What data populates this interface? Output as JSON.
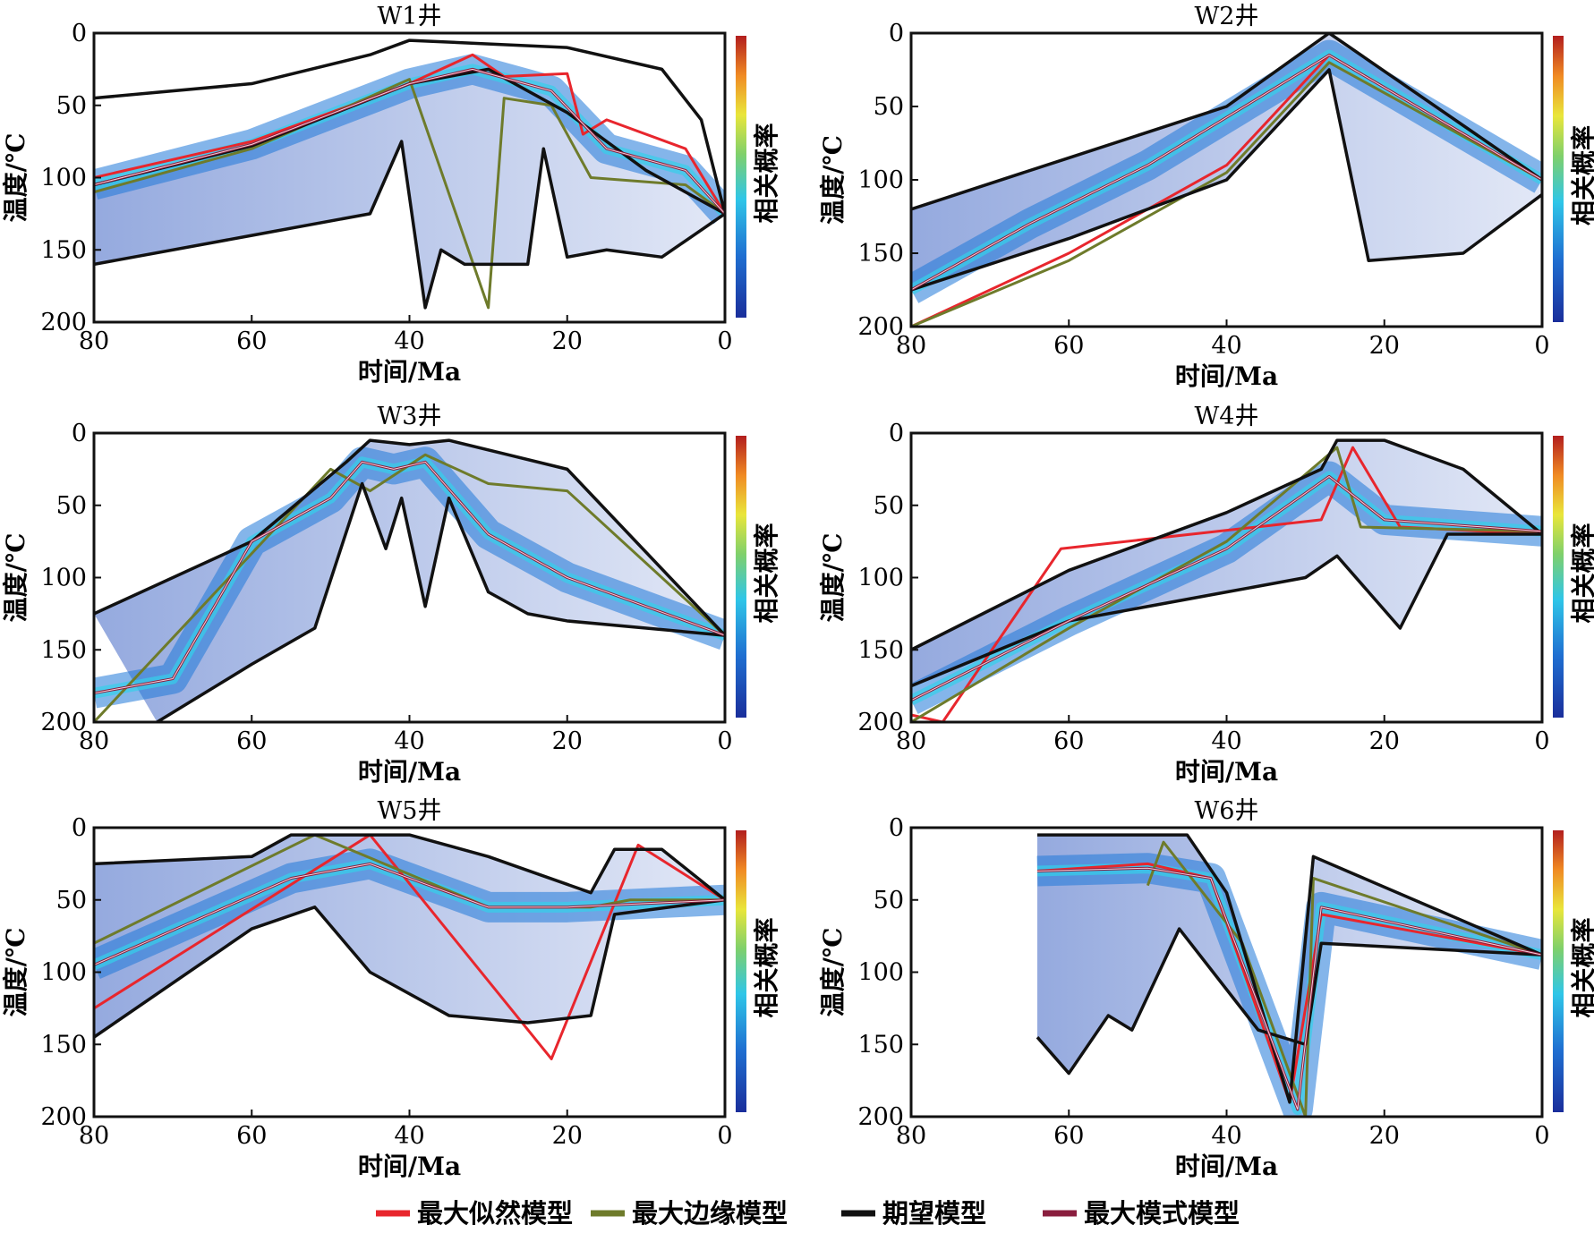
{
  "legend": [
    {
      "label": "最大似然模型",
      "color": "#e8262d"
    },
    {
      "label": "最大边缘模型",
      "color": "#6e7b2b"
    },
    {
      "label": "期望模型",
      "color": "#111111"
    },
    {
      "label": "最大模式模型",
      "color": "#8a1e3e"
    }
  ],
  "colorbar_label": "相关概率",
  "chart_data": [
    {
      "type": "line",
      "title": "W1井",
      "xlabel": "时间/Ma",
      "ylabel": "温度/℃",
      "xlim": [
        80,
        0
      ],
      "ylim": [
        200,
        0
      ],
      "xticks": [
        "80",
        "60",
        "40",
        "20",
        "0"
      ],
      "yticks": [
        "0",
        "50",
        "100",
        "150",
        "200"
      ],
      "series": [
        {
          "name": "最大似然模型",
          "points": [
            [
              80,
              100
            ],
            [
              60,
              75
            ],
            [
              40,
              35
            ],
            [
              32,
              15
            ],
            [
              28,
              30
            ],
            [
              20,
              28
            ],
            [
              18,
              70
            ],
            [
              15,
              60
            ],
            [
              5,
              80
            ],
            [
              0,
              125
            ]
          ]
        },
        {
          "name": "最大边缘模型",
          "points": [
            [
              80,
              110
            ],
            [
              60,
              80
            ],
            [
              40,
              32
            ],
            [
              30,
              190
            ],
            [
              28,
              45
            ],
            [
              22,
              50
            ],
            [
              17,
              100
            ],
            [
              5,
              105
            ],
            [
              0,
              125
            ]
          ]
        },
        {
          "name": "期望模型",
          "points": [
            [
              80,
              105
            ],
            [
              60,
              78
            ],
            [
              40,
              35
            ],
            [
              30,
              25
            ],
            [
              20,
              55
            ],
            [
              10,
              95
            ],
            [
              0,
              125
            ]
          ]
        },
        {
          "name": "期望模型",
          "points": [
            [
              80,
              45
            ],
            [
              60,
              35
            ],
            [
              45,
              15
            ],
            [
              40,
              5
            ],
            [
              20,
              10
            ],
            [
              8,
              25
            ],
            [
              3,
              60
            ],
            [
              0,
              125
            ]
          ]
        },
        {
          "name": "期望模型",
          "points": [
            [
              80,
              160
            ],
            [
              60,
              140
            ],
            [
              45,
              125
            ],
            [
              41,
              75
            ],
            [
              38,
              190
            ],
            [
              36,
              150
            ],
            [
              33,
              160
            ],
            [
              25,
              160
            ],
            [
              23,
              80
            ],
            [
              20,
              155
            ],
            [
              15,
              150
            ],
            [
              8,
              155
            ],
            [
              0,
              125
            ]
          ]
        },
        {
          "name": "最大模式模型",
          "points": [
            [
              80,
              105
            ],
            [
              60,
              77
            ],
            [
              40,
              35
            ],
            [
              32,
              25
            ],
            [
              22,
              40
            ],
            [
              15,
              80
            ],
            [
              5,
              95
            ],
            [
              0,
              125
            ]
          ]
        }
      ]
    },
    {
      "type": "line",
      "title": "W2井",
      "xlabel": "时间/Ma",
      "ylabel": "温度/℃",
      "xlim": [
        80,
        0
      ],
      "ylim": [
        200,
        0
      ],
      "xticks": [
        "80",
        "60",
        "40",
        "20",
        "0"
      ],
      "yticks": [
        "0",
        "50",
        "100",
        "150",
        "200"
      ],
      "series": [
        {
          "name": "最大似然模型",
          "points": [
            [
              80,
              200
            ],
            [
              60,
              150
            ],
            [
              40,
              90
            ],
            [
              27,
              15
            ],
            [
              0,
              100
            ]
          ]
        },
        {
          "name": "最大边缘模型",
          "points": [
            [
              80,
              200
            ],
            [
              60,
              155
            ],
            [
              40,
              95
            ],
            [
              27,
              20
            ],
            [
              0,
              100
            ]
          ]
        },
        {
          "name": "期望模型",
          "points": [
            [
              80,
              120
            ],
            [
              60,
              85
            ],
            [
              40,
              50
            ],
            [
              27,
              0
            ],
            [
              0,
              100
            ]
          ]
        },
        {
          "name": "期望模型",
          "points": [
            [
              80,
              175
            ],
            [
              60,
              140
            ],
            [
              40,
              100
            ],
            [
              27,
              25
            ],
            [
              22,
              155
            ],
            [
              10,
              150
            ],
            [
              0,
              110
            ]
          ]
        },
        {
          "name": "最大模式模型",
          "points": [
            [
              80,
              175
            ],
            [
              65,
              130
            ],
            [
              50,
              90
            ],
            [
              27,
              15
            ],
            [
              0,
              100
            ]
          ]
        }
      ]
    },
    {
      "type": "line",
      "title": "W3井",
      "xlabel": "时间/Ma",
      "ylabel": "温度/℃",
      "xlim": [
        80,
        0
      ],
      "ylim": [
        200,
        0
      ],
      "xticks": [
        "80",
        "60",
        "40",
        "20",
        "0"
      ],
      "yticks": [
        "0",
        "50",
        "100",
        "150",
        "200"
      ],
      "series": [
        {
          "name": "最大边缘模型",
          "points": [
            [
              80,
              200
            ],
            [
              50,
              25
            ],
            [
              45,
              40
            ],
            [
              38,
              15
            ],
            [
              30,
              35
            ],
            [
              20,
              40
            ],
            [
              0,
              140
            ]
          ]
        },
        {
          "name": "期望模型",
          "points": [
            [
              80,
              125
            ],
            [
              60,
              75
            ],
            [
              48,
              20
            ],
            [
              45,
              5
            ],
            [
              40,
              8
            ],
            [
              35,
              5
            ],
            [
              20,
              25
            ],
            [
              0,
              140
            ]
          ]
        },
        {
          "name": "期望模型",
          "points": [
            [
              72,
              200
            ],
            [
              60,
              160
            ],
            [
              52,
              135
            ],
            [
              46,
              35
            ],
            [
              43,
              80
            ],
            [
              41,
              45
            ],
            [
              38,
              120
            ],
            [
              35,
              45
            ],
            [
              30,
              110
            ],
            [
              25,
              125
            ],
            [
              20,
              130
            ],
            [
              0,
              140
            ]
          ]
        },
        {
          "name": "最大模式模型",
          "points": [
            [
              80,
              180
            ],
            [
              70,
              170
            ],
            [
              60,
              75
            ],
            [
              50,
              45
            ],
            [
              46,
              20
            ],
            [
              42,
              25
            ],
            [
              38,
              20
            ],
            [
              30,
              70
            ],
            [
              20,
              100
            ],
            [
              0,
              140
            ]
          ]
        }
      ]
    },
    {
      "type": "line",
      "title": "W4井",
      "xlabel": "时间/Ma",
      "ylabel": "温度/℃",
      "xlim": [
        80,
        0
      ],
      "ylim": [
        200,
        0
      ],
      "xticks": [
        "80",
        "60",
        "40",
        "20",
        "0"
      ],
      "yticks": [
        "0",
        "50",
        "100",
        "150",
        "200"
      ],
      "series": [
        {
          "name": "最大似然模型",
          "points": [
            [
              80,
              195
            ],
            [
              76,
              200
            ],
            [
              61,
              80
            ],
            [
              28,
              60
            ],
            [
              24,
              10
            ],
            [
              18,
              65
            ],
            [
              0,
              70
            ]
          ]
        },
        {
          "name": "最大边缘模型",
          "points": [
            [
              80,
              200
            ],
            [
              60,
              135
            ],
            [
              40,
              75
            ],
            [
              26,
              10
            ],
            [
              23,
              65
            ],
            [
              0,
              68
            ]
          ]
        },
        {
          "name": "期望模型",
          "points": [
            [
              80,
              150
            ],
            [
              60,
              95
            ],
            [
              40,
              55
            ],
            [
              28,
              25
            ],
            [
              26,
              5
            ],
            [
              20,
              5
            ],
            [
              10,
              25
            ],
            [
              0,
              70
            ]
          ]
        },
        {
          "name": "期望模型",
          "points": [
            [
              80,
              175
            ],
            [
              60,
              130
            ],
            [
              40,
              110
            ],
            [
              30,
              100
            ],
            [
              26,
              85
            ],
            [
              22,
              110
            ],
            [
              18,
              135
            ],
            [
              12,
              70
            ],
            [
              0,
              70
            ]
          ]
        },
        {
          "name": "最大模式模型",
          "points": [
            [
              80,
              185
            ],
            [
              60,
              130
            ],
            [
              40,
              80
            ],
            [
              27,
              30
            ],
            [
              20,
              60
            ],
            [
              0,
              68
            ]
          ]
        }
      ]
    },
    {
      "type": "line",
      "title": "W5井",
      "xlabel": "时间/Ma",
      "ylabel": "温度/℃",
      "xlim": [
        80,
        0
      ],
      "ylim": [
        200,
        0
      ],
      "xticks": [
        "80",
        "60",
        "40",
        "20",
        "0"
      ],
      "yticks": [
        "0",
        "50",
        "100",
        "150",
        "200"
      ],
      "series": [
        {
          "name": "最大似然模型",
          "points": [
            [
              80,
              125
            ],
            [
              45,
              5
            ],
            [
              22,
              160
            ],
            [
              11,
              12
            ],
            [
              0,
              50
            ]
          ]
        },
        {
          "name": "最大边缘模型",
          "points": [
            [
              80,
              80
            ],
            [
              52,
              5
            ],
            [
              30,
              55
            ],
            [
              17,
              55
            ],
            [
              12,
              50
            ],
            [
              0,
              50
            ]
          ]
        },
        {
          "name": "期望模型",
          "points": [
            [
              80,
              25
            ],
            [
              60,
              20
            ],
            [
              55,
              5
            ],
            [
              40,
              5
            ],
            [
              30,
              20
            ],
            [
              17,
              45
            ],
            [
              14,
              15
            ],
            [
              8,
              15
            ],
            [
              0,
              50
            ]
          ]
        },
        {
          "name": "期望模型",
          "points": [
            [
              80,
              145
            ],
            [
              60,
              70
            ],
            [
              52,
              55
            ],
            [
              45,
              100
            ],
            [
              35,
              130
            ],
            [
              25,
              135
            ],
            [
              17,
              130
            ],
            [
              14,
              60
            ],
            [
              0,
              50
            ]
          ]
        },
        {
          "name": "最大模式模型",
          "points": [
            [
              80,
              95
            ],
            [
              55,
              35
            ],
            [
              45,
              25
            ],
            [
              30,
              55
            ],
            [
              20,
              55
            ],
            [
              0,
              50
            ]
          ]
        }
      ]
    },
    {
      "type": "line",
      "title": "W6井",
      "xlabel": "时间/Ma",
      "ylabel": "温度/℃",
      "xlim": [
        80,
        0
      ],
      "ylim": [
        200,
        0
      ],
      "xticks": [
        "80",
        "60",
        "40",
        "20",
        "0"
      ],
      "yticks": [
        "0",
        "50",
        "100",
        "150",
        "200"
      ],
      "series": [
        {
          "name": "最大似然模型",
          "points": [
            [
              64,
              30
            ],
            [
              50,
              25
            ],
            [
              42,
              35
            ],
            [
              32,
              190
            ],
            [
              28,
              60
            ],
            [
              0,
              88
            ]
          ]
        },
        {
          "name": "最大边缘模型",
          "points": [
            [
              50,
              40
            ],
            [
              48,
              10
            ],
            [
              38,
              80
            ],
            [
              30,
              200
            ],
            [
              29,
              35
            ],
            [
              0,
              88
            ]
          ]
        },
        {
          "name": "期望模型",
          "points": [
            [
              64,
              5
            ],
            [
              45,
              5
            ],
            [
              40,
              45
            ],
            [
              32,
              190
            ],
            [
              29,
              20
            ],
            [
              0,
              88
            ]
          ]
        },
        {
          "name": "期望模型",
          "points": [
            [
              64,
              145
            ],
            [
              60,
              170
            ],
            [
              55,
              130
            ],
            [
              52,
              140
            ],
            [
              46,
              70
            ],
            [
              36,
              140
            ],
            [
              30,
              150
            ],
            [
              28,
              80
            ],
            [
              0,
              88
            ]
          ]
        },
        {
          "name": "最大模式模型",
          "points": [
            [
              64,
              30
            ],
            [
              50,
              28
            ],
            [
              42,
              35
            ],
            [
              31,
              195
            ],
            [
              28,
              55
            ],
            [
              0,
              88
            ]
          ]
        }
      ]
    }
  ]
}
